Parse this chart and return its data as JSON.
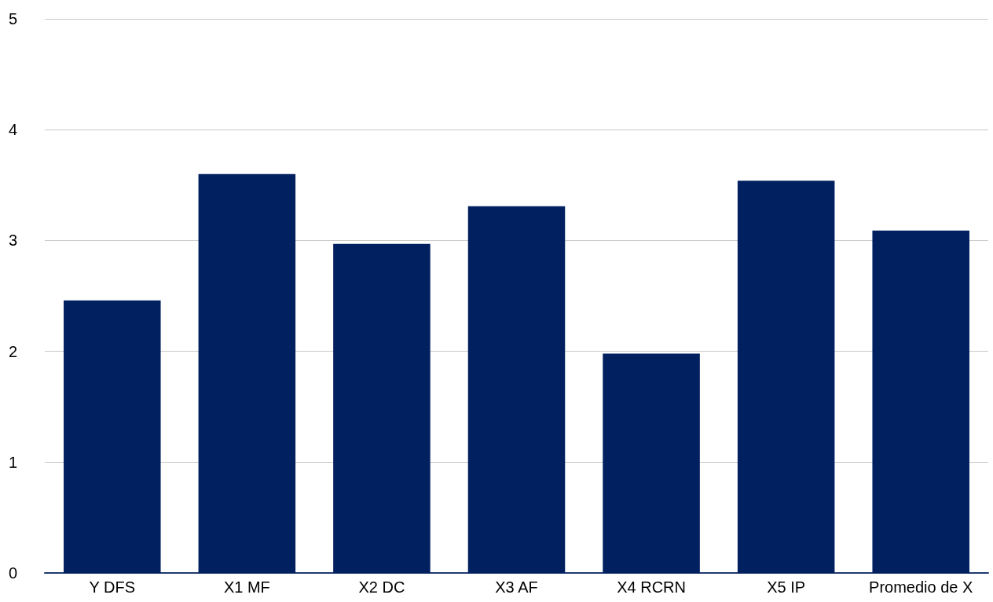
{
  "chart_data": {
    "type": "bar",
    "categories": [
      "Y DFS",
      "X1 MF",
      "X2 DC",
      "X3 AF",
      "X4 RCRN",
      "X5 IP",
      "Promedio de X"
    ],
    "values": [
      2.46,
      3.6,
      2.97,
      3.31,
      1.98,
      3.54,
      3.09
    ],
    "color": "#002060",
    "ylim": [
      0,
      5
    ],
    "yticks": [
      0,
      1,
      2,
      3,
      4,
      5
    ],
    "grid": "y"
  }
}
